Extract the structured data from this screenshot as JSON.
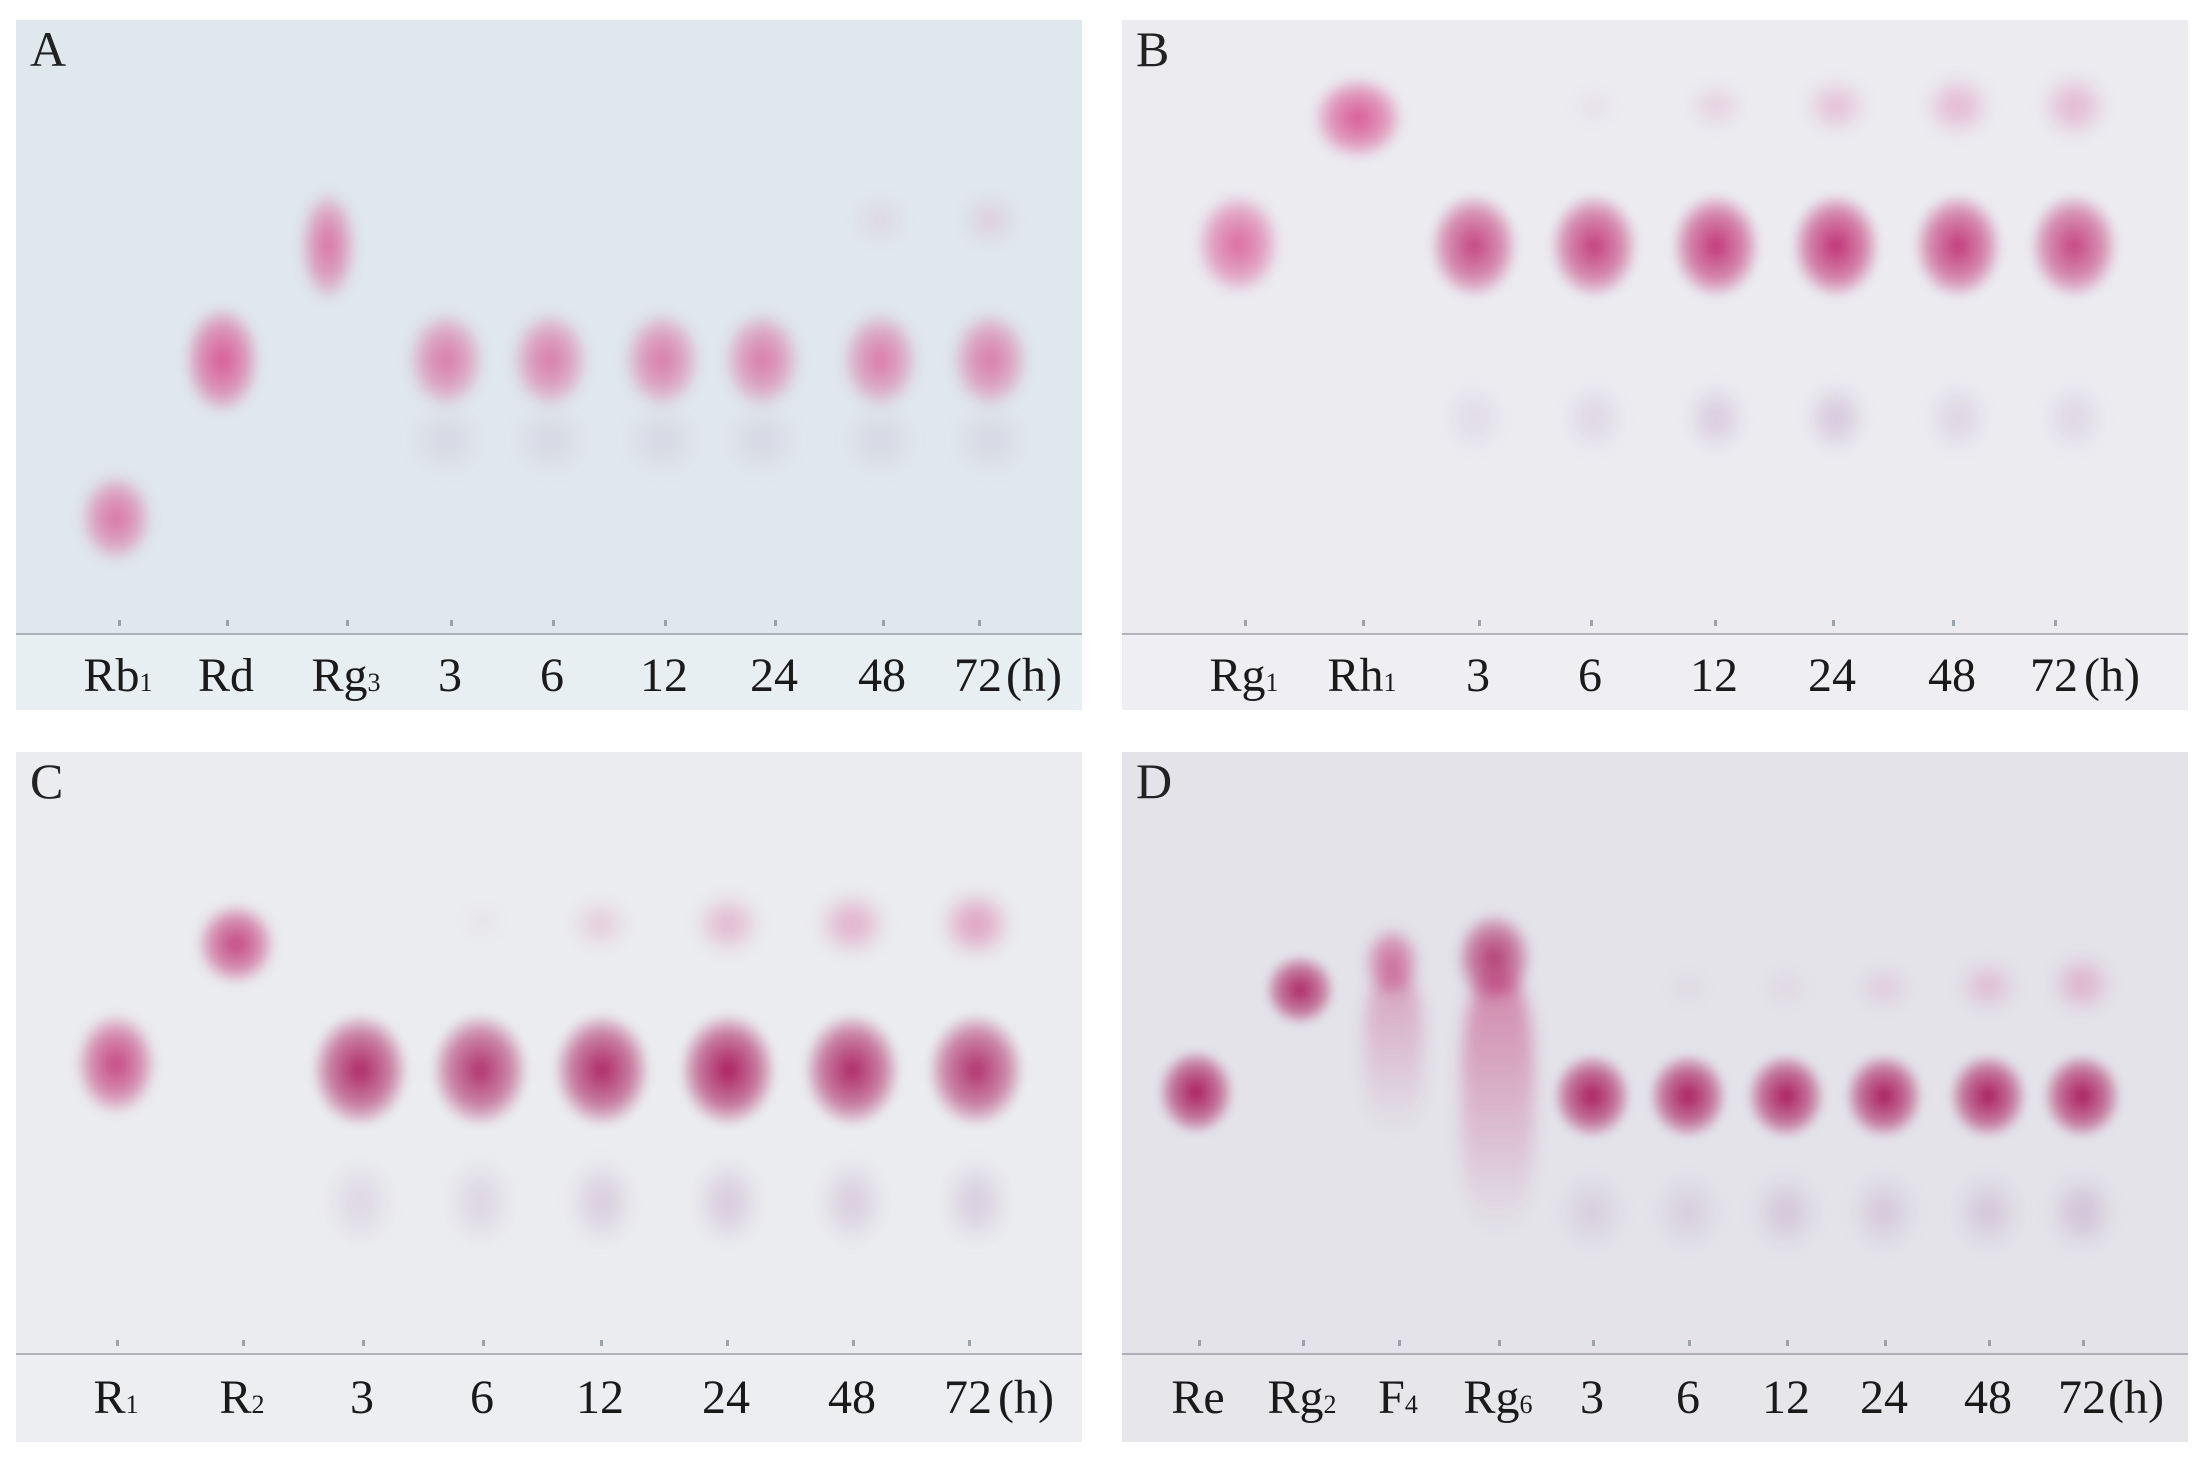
{
  "panels": [
    {
      "letter": "A",
      "plate_color": "#dfe9ee",
      "label_strip_color": "#e8eff2",
      "lanes": [
        {
          "main": "Rb",
          "sub": "1"
        },
        {
          "main": "Rd",
          "sub": ""
        },
        {
          "main": "Rg",
          "sub": "3"
        },
        {
          "main": "3",
          "sub": ""
        },
        {
          "main": "6",
          "sub": ""
        },
        {
          "main": "12",
          "sub": ""
        },
        {
          "main": "24",
          "sub": ""
        },
        {
          "main": "48",
          "sub": ""
        },
        {
          "main": "72",
          "sub": ""
        }
      ],
      "unit": "(h)"
    },
    {
      "letter": "B",
      "plate_color": "#ececf1",
      "label_strip_color": "#efeff3",
      "lanes": [
        {
          "main": "Rg",
          "sub": "1"
        },
        {
          "main": "Rh",
          "sub": "1"
        },
        {
          "main": "3",
          "sub": ""
        },
        {
          "main": "6",
          "sub": ""
        },
        {
          "main": "12",
          "sub": ""
        },
        {
          "main": "24",
          "sub": ""
        },
        {
          "main": "48",
          "sub": ""
        },
        {
          "main": "72",
          "sub": ""
        }
      ],
      "unit": "(h)"
    },
    {
      "letter": "C",
      "plate_color": "#ebedf0",
      "label_strip_color": "#eceef1",
      "lanes": [
        {
          "main": "R",
          "sub": "1"
        },
        {
          "main": "R",
          "sub": "2"
        },
        {
          "main": "3",
          "sub": ""
        },
        {
          "main": "6",
          "sub": ""
        },
        {
          "main": "12",
          "sub": ""
        },
        {
          "main": "24",
          "sub": ""
        },
        {
          "main": "48",
          "sub": ""
        },
        {
          "main": "72",
          "sub": ""
        }
      ],
      "unit": "(h)"
    },
    {
      "letter": "D",
      "plate_color": "#e4e4ea",
      "label_strip_color": "#e6e6eb",
      "lanes": [
        {
          "main": "Re",
          "sub": ""
        },
        {
          "main": "Rg",
          "sub": "2"
        },
        {
          "main": "F",
          "sub": "4"
        },
        {
          "main": "Rg",
          "sub": "6"
        },
        {
          "main": "3",
          "sub": ""
        },
        {
          "main": "6",
          "sub": ""
        },
        {
          "main": "12",
          "sub": ""
        },
        {
          "main": "24",
          "sub": ""
        },
        {
          "main": "48",
          "sub": ""
        },
        {
          "main": "72",
          "sub": ""
        }
      ],
      "unit": "(h)"
    }
  ]
}
